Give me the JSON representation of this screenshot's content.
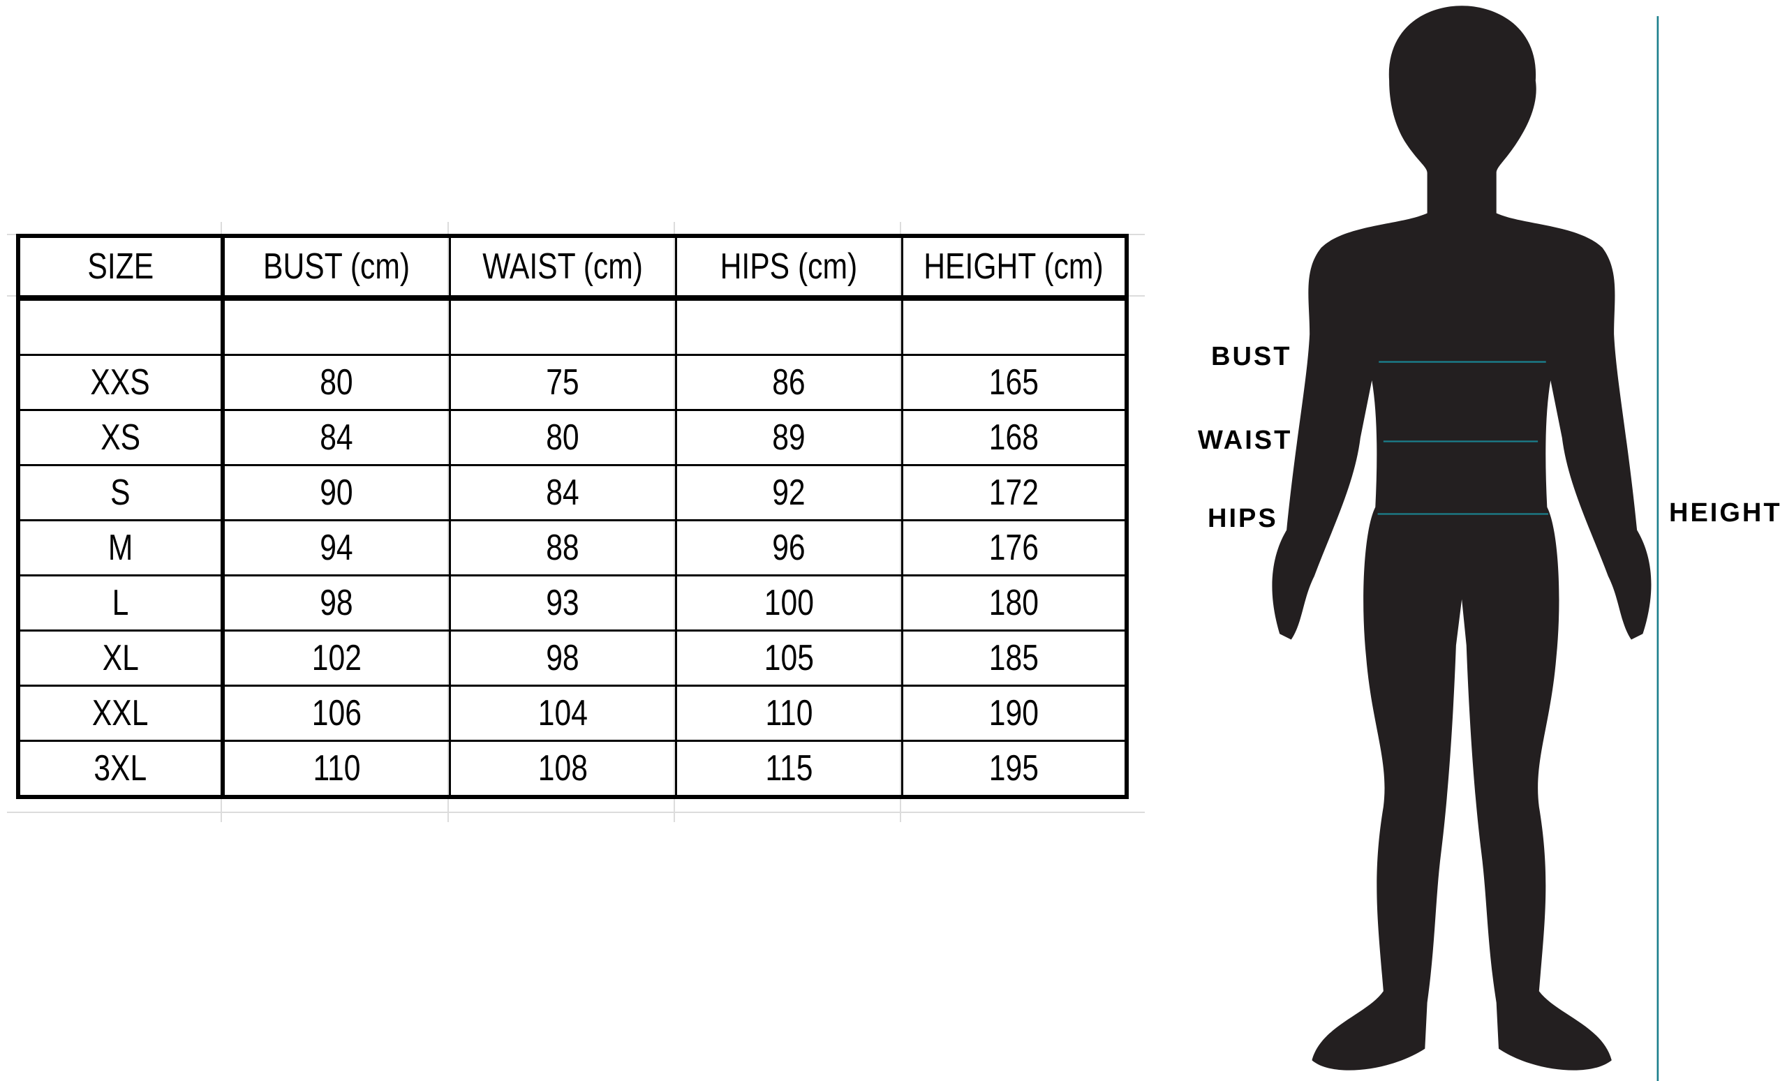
{
  "table": {
    "headers": [
      "SIZE",
      "BUST (cm)",
      "WAIST (cm)",
      "HIPS (cm)",
      "HEIGHT (cm)"
    ],
    "rows": [
      [
        "",
        "",
        "",
        "",
        ""
      ],
      [
        "XXS",
        "80",
        "75",
        "86",
        "165"
      ],
      [
        "XS",
        "84",
        "80",
        "89",
        "168"
      ],
      [
        "S",
        "90",
        "84",
        "92",
        "172"
      ],
      [
        "M",
        "94",
        "88",
        "96",
        "176"
      ],
      [
        "L",
        "98",
        "93",
        "100",
        "180"
      ],
      [
        "XL",
        "102",
        "98",
        "105",
        "185"
      ],
      [
        "XXL",
        "106",
        "104",
        "110",
        "190"
      ],
      [
        "3XL",
        "110",
        "108",
        "115",
        "195"
      ]
    ]
  },
  "figure": {
    "labels": {
      "bust": "BUST",
      "waist": "WAIST",
      "hips": "HIPS",
      "height": "HEIGHT"
    },
    "line_color": "#1b7f8c",
    "silhouette_color": "#231f20"
  }
}
